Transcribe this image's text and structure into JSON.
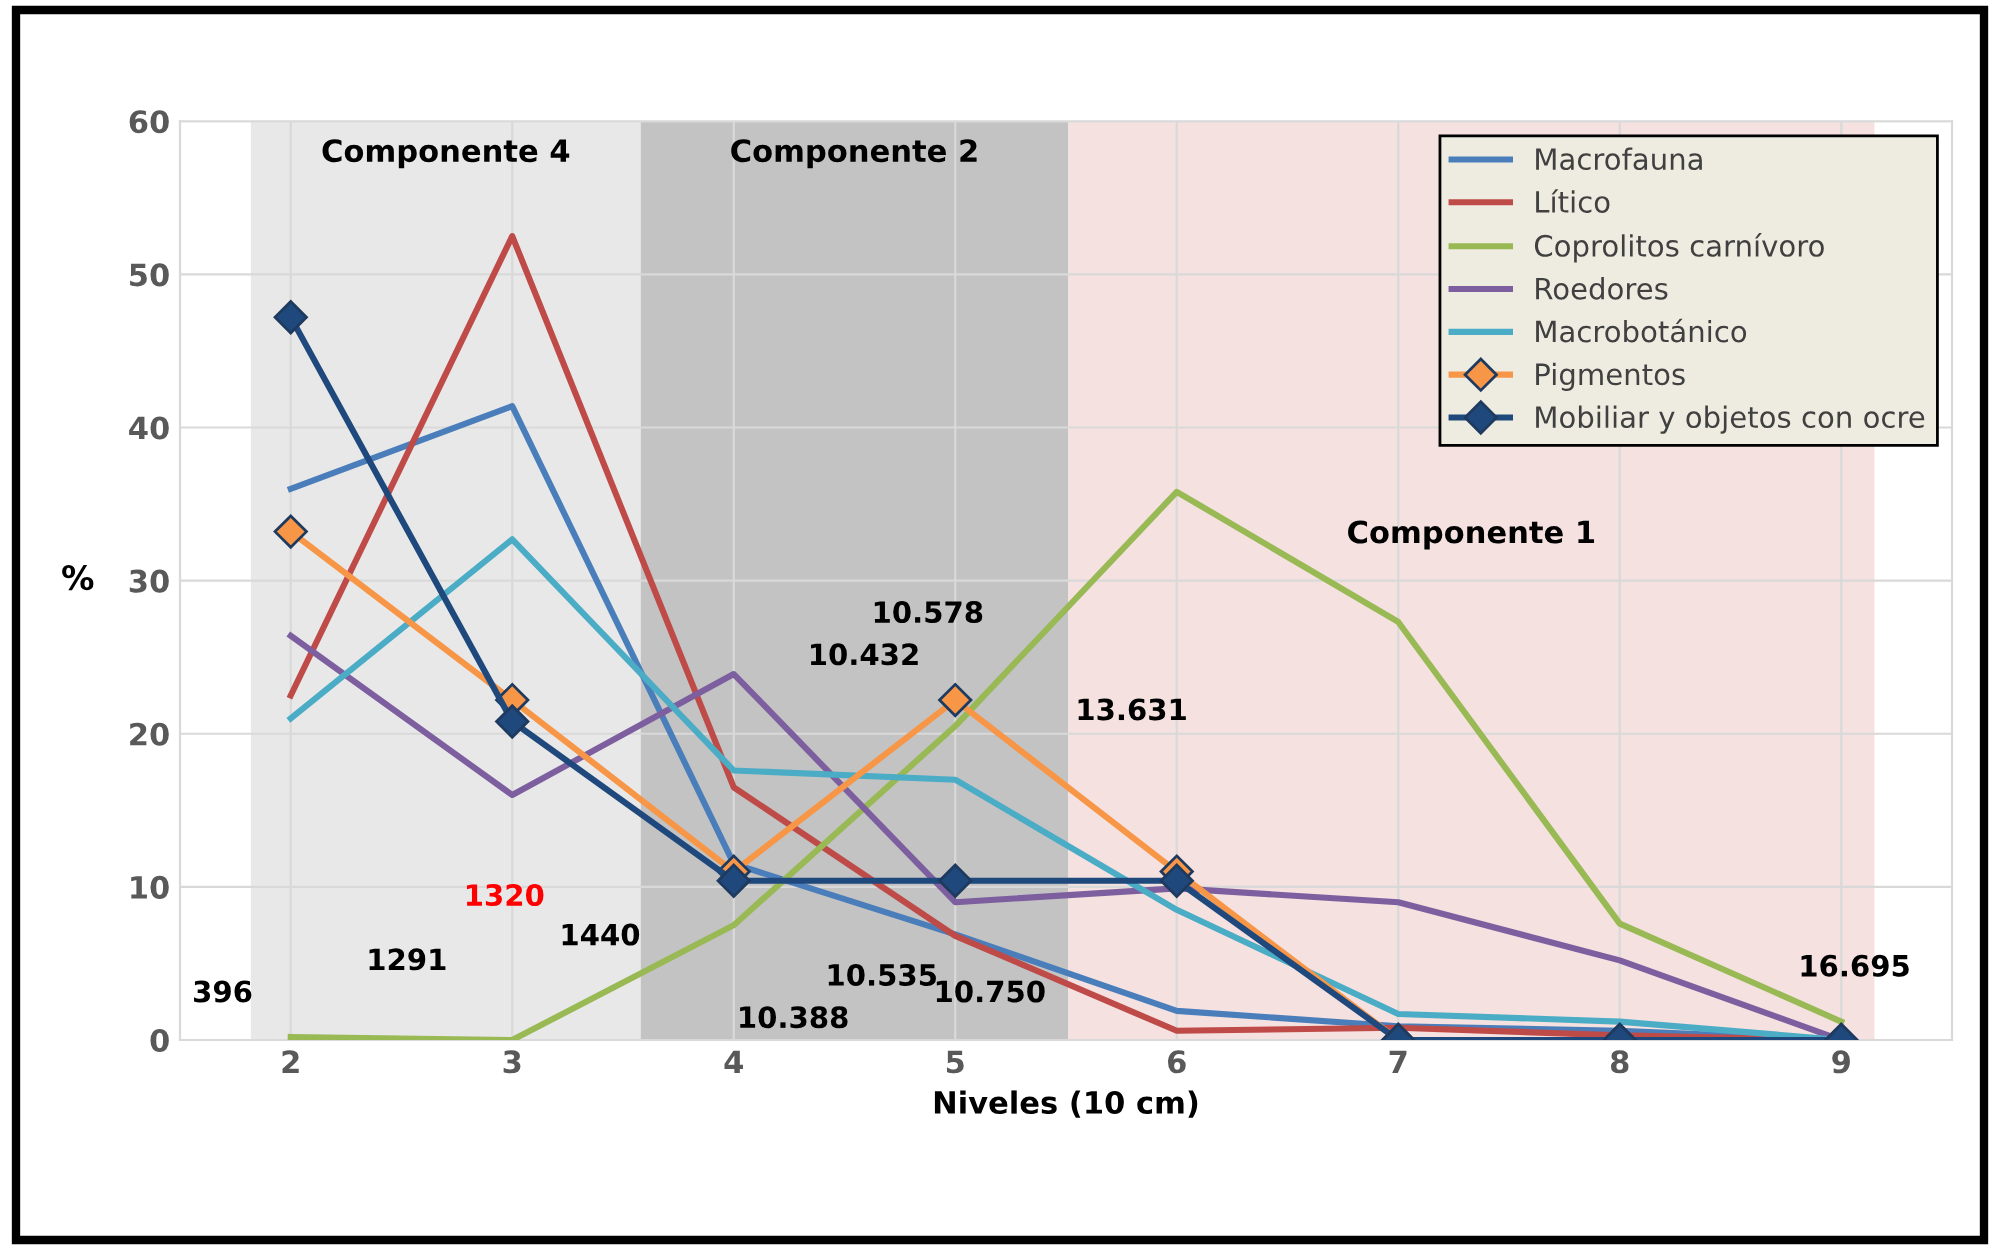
{
  "chart_data": {
    "type": "line",
    "xlabel": "Niveles (10 cm)",
    "ylabel": "%",
    "x": [
      2,
      3,
      4,
      5,
      6,
      7,
      8,
      9
    ],
    "xlim": [
      1.5,
      9.5
    ],
    "xticks": [
      2,
      3,
      4,
      5,
      6,
      7,
      8,
      9
    ],
    "ylim": [
      0,
      60
    ],
    "yticks": [
      0,
      10,
      20,
      30,
      40,
      50,
      60
    ],
    "grid": true,
    "legend": "top right",
    "marker": "none",
    "series": [
      {
        "name": "Macrofauna",
        "color": "#4a7ebb",
        "values": [
          36,
          41.4,
          11.5,
          6.9,
          1.9,
          0.9,
          0.6,
          0
        ]
      },
      {
        "name": "Lítico",
        "color": "#be4b48",
        "values": [
          22.5,
          52.5,
          16.5,
          6.8,
          0.6,
          0.8,
          0.3,
          0
        ]
      },
      {
        "name": "Coprolitos carnívoro",
        "color": "#98b954",
        "values": [
          0.2,
          0,
          7.5,
          20.5,
          35.8,
          27.3,
          7.6,
          1.2
        ]
      },
      {
        "name": "Roedores",
        "color": "#7d5fa0",
        "values": [
          26.4,
          16,
          23.9,
          9,
          9.9,
          9,
          5.2,
          0
        ]
      },
      {
        "name": "Macrobotánico",
        "color": "#4bacc6",
        "values": [
          21,
          32.7,
          17.6,
          17,
          8.5,
          1.7,
          1.2,
          0
        ]
      },
      {
        "name": "Pigmentos",
        "color": "#f79646",
        "marker": "diamond",
        "values": [
          33.2,
          22.2,
          11,
          22.2,
          11,
          0,
          0,
          0
        ]
      },
      {
        "name": "Mobiliar y objetos con ocre",
        "color": "#1f497d",
        "marker": "diamond",
        "values": [
          47.2,
          20.8,
          10.4,
          10.4,
          10.4,
          0,
          0,
          0
        ]
      }
    ],
    "bands": [
      {
        "axis": "x",
        "from": 1.82,
        "to": 3.58,
        "label": "Componente 4",
        "color": "#e4e4e4"
      },
      {
        "axis": "x",
        "from": 3.58,
        "to": 5.51,
        "label": "Componente 2",
        "color": "#b8b8b8"
      },
      {
        "axis": "x",
        "from": 5.51,
        "to": 9.15,
        "label": "Componente 1",
        "color": "#f2dcdb"
      }
    ],
    "annotations": [
      "396",
      "1291",
      "1320",
      "1440",
      "10.388",
      "10.535",
      "10.750",
      "10.432",
      "10.578",
      "13.631",
      "16.695"
    ]
  }
}
